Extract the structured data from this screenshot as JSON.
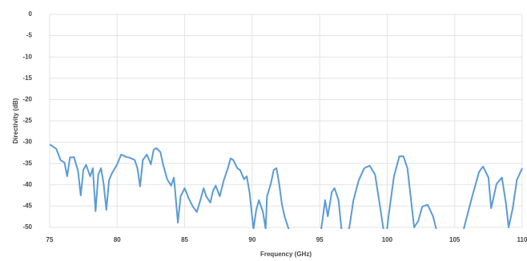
{
  "chart_data": {
    "type": "line",
    "x_label": "Frequency (GHz)",
    "y_label": "Directivity (dB)",
    "xlim": [
      75,
      110
    ],
    "xticks": [
      75,
      80,
      85,
      90,
      95,
      100,
      105,
      110
    ],
    "ylim": [
      -50,
      0
    ],
    "yticks": [
      0,
      -5,
      -10,
      -15,
      -20,
      -25,
      -30,
      -35,
      -40,
      -45,
      -50
    ],
    "grid": true,
    "x": [
      75.0,
      75.5,
      75.8,
      76.1,
      76.3,
      76.5,
      76.8,
      77.1,
      77.3,
      77.5,
      77.7,
      78.0,
      78.2,
      78.4,
      78.6,
      78.8,
      79.0,
      79.2,
      79.4,
      79.6,
      80.0,
      80.3,
      80.7,
      80.9,
      81.3,
      81.5,
      81.7,
      81.9,
      82.2,
      82.5,
      82.7,
      82.9,
      83.2,
      83.4,
      83.7,
      84.0,
      84.2,
      84.3,
      84.5,
      84.7,
      85.0,
      85.3,
      85.6,
      85.9,
      86.2,
      86.4,
      86.6,
      86.9,
      87.1,
      87.3,
      87.6,
      87.9,
      88.2,
      88.4,
      88.6,
      88.9,
      89.1,
      89.4,
      89.6,
      89.8,
      90.1,
      90.3,
      90.5,
      90.8,
      91.0,
      91.1,
      91.4,
      91.6,
      91.8,
      92.0,
      92.2,
      92.4,
      92.7,
      92.9,
      94.9,
      95.2,
      95.4,
      95.6,
      95.9,
      96.1,
      96.4,
      96.6,
      96.8,
      97.2,
      97.5,
      97.9,
      98.3,
      98.7,
      99.1,
      99.4,
      99.7,
      99.9,
      100.1,
      100.5,
      100.9,
      101.2,
      101.5,
      101.7,
      102.0,
      102.3,
      102.6,
      103.0,
      103.4,
      103.6,
      104.0,
      105.5,
      105.7,
      106.3,
      106.8,
      107.1,
      107.5,
      107.7,
      108.1,
      108.5,
      108.8,
      109.0,
      109.3,
      109.6,
      110.0
    ],
    "series": [
      {
        "color": "#5b9bd5",
        "values": [
          -30.5,
          -31.6,
          -34.2,
          -34.8,
          -38.0,
          -33.6,
          -33.5,
          -36.7,
          -42.5,
          -36.5,
          -35.3,
          -38.0,
          -36.1,
          -46.2,
          -37.6,
          -36.1,
          -39.8,
          -45.9,
          -38.9,
          -37.4,
          -35.2,
          -32.9,
          -33.5,
          -33.6,
          -34.2,
          -36.1,
          -40.4,
          -34.2,
          -32.9,
          -35.2,
          -31.8,
          -31.4,
          -32.3,
          -35.2,
          -38.7,
          -40.2,
          -38.3,
          -41.7,
          -48.9,
          -42.7,
          -40.8,
          -43.2,
          -45.1,
          -46.4,
          -43.2,
          -40.8,
          -42.7,
          -44.2,
          -41.4,
          -40.2,
          -42.7,
          -38.9,
          -36.1,
          -33.8,
          -34.2,
          -36.1,
          -36.5,
          -38.7,
          -38.0,
          -41.7,
          -50.4,
          -45.9,
          -43.6,
          -46.4,
          -50.4,
          -42.7,
          -39.5,
          -36.5,
          -36.1,
          -39.8,
          -44.5,
          -47.4,
          -50.4,
          -55,
          -55,
          -48.5,
          -43.6,
          -47.4,
          -41.7,
          -40.8,
          -43.6,
          -50.0,
          -53,
          -50.0,
          -43.6,
          -38.9,
          -36.1,
          -35.5,
          -37.6,
          -43.6,
          -50.0,
          -53,
          -47.4,
          -38.0,
          -33.3,
          -33.3,
          -36.1,
          -41.7,
          -50.0,
          -48.5,
          -45.1,
          -44.7,
          -47.4,
          -50.0,
          -54,
          -54,
          -50.0,
          -42.7,
          -37.0,
          -35.7,
          -38.3,
          -45.5,
          -39.8,
          -38.3,
          -44.5,
          -50.0,
          -45.5,
          -38.9,
          -36.1
        ]
      }
    ]
  }
}
